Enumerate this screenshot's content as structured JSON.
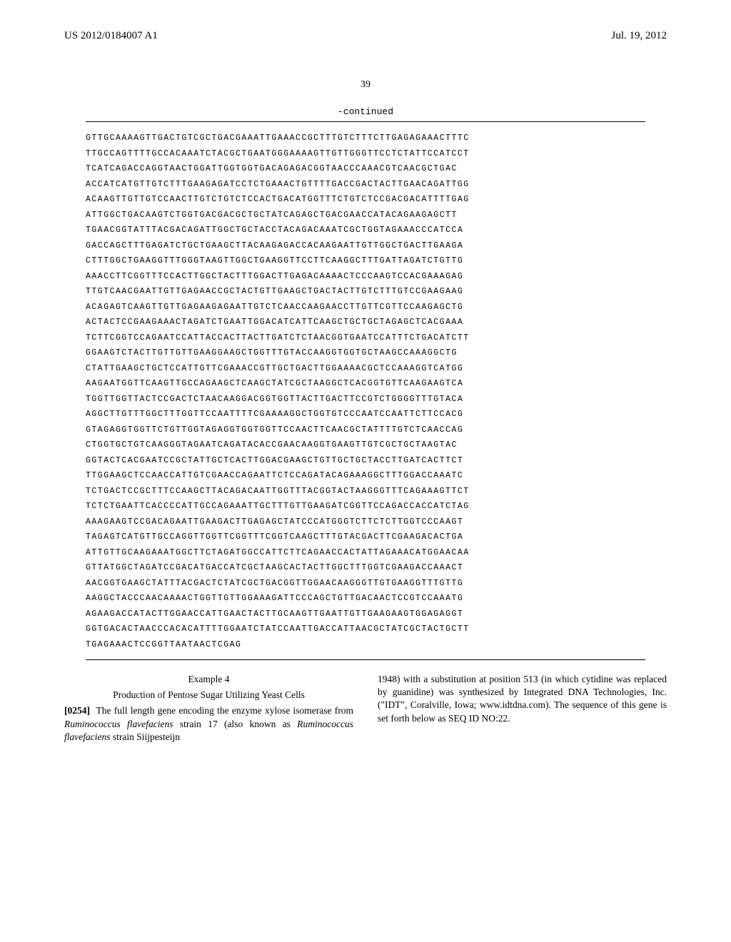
{
  "header": {
    "pub_number": "US 2012/0184007 A1",
    "pub_date": "Jul. 19, 2012"
  },
  "page_number": "39",
  "continued_label": "-continued",
  "sequence_lines": [
    "GTTGCAAAAGTTGACTGTCGCTGACGAAATTGAAACCGCTTTGTCTTTCTTGAGAGAAACTTTC",
    "TTGCCAGTTTTGCCACAAATCTACGCTGAATGGGAAAAGTTGTTGGGTTCCTCTATTCCATCCT",
    "TCATCAGACCAGGTAACTGGATTGGTGGTGACAGAGACGGTAACCCAAACGTCAACGCTGAC",
    "ACCATCATGTTGTCTTTGAAGAGATCCTCTGAAACTGTTTTGACCGACTACTTGAACAGATTGG",
    "ACAAGTTGTTGTCCAACTTGTCTGTCTCCACTGACATGGTTTCTGTCTCCGACGACATTTTGAG",
    "ATTGGCTGACAAGTCTGGTGACGACGCTGCTATCAGAGCTGACGAACCATACAGAAGAGCTT",
    "TGAACGGTATTTACGACAGATTGGCTGCTACCTACAGACAAATCGCTGGTAGAAACCCATCCA",
    "GACCAGCTTTGAGATCTGCTGAAGCTTACAAGAGACCACAAGAATTGTTGGCTGACTTGAAGA",
    "CTTTGGCTGAAGGTTTGGGTAAGTTGGCTGAAGGTTCCTTCAAGGCTTTGATTAGATCTGTTG",
    "AAACCTTCGGTTTCCACTTGGCTACTTTGGACTTGAGACAAAACTCCCAAGTCCACGAAAGAG",
    "TTGTCAACGAATTGTTGAGAACCGCTACTGTTGAAGCTGACTACTTGTCTTTGTCCGAAGAAG",
    "ACAGAGTCAAGTTGTTGAGAAGAGAATTGTCTCAACCAAGAACCTTGTTCGTTCCAAGAGCTG",
    "ACTACTCCGAAGAAACTAGATCTGAATTGGACATCATTCAAGCTGCTGCTAGAGCTCACGAAA",
    "TCTTCGGTCCAGAATCCATTACCACTTACTTGATCTCTAACGGTGAATCCATTTCTGACATCTT",
    "GGAAGTCTACTTGTTGTTGAAGGAAGCTGGTTTGTACCAAGGTGGTGCTAAGCCAAAGGCTG",
    "CTATTGAAGCTGCTCCATTGTTCGAAACCGTTGCTGACTTGGAAAACGCTCCAAAGGTCATGG",
    "AAGAATGGTTCAAGTTGCCAGAAGCTCAAGCTATCGCTAAGGCTCACGGTGTTCAAGAAGTCA",
    "TGGTTGGTTACTCCGACTCTAACAAGGACGGTGGTTACTTGACTTCCGTCTGGGGTTTGTACA",
    "AGGCTTGTTTGGCTTTGGTTCCAATTTTCGAAAAGGCTGGTGTCCCAATCCAATTCTTCCACG",
    "GTAGAGGTGGTTCTGTTGGTAGAGGTGGTGGTTCCAACTTCAACGCTATTTTGTCTCAACCAG",
    "CTGGTGCTGTCAAGGGTAGAATCAGATACACCGAACAAGGTGAAGTTGTCGCTGCTAAGTAC",
    "GGTACTCACGAATCCGCTATTGCTCACTTGGACGAAGCTGTTGCTGCTACCTTGATCACTTCT",
    "TTGGAAGCTCCAACCATTGTCGAACCAGAATTCTCCAGATACAGAAAGGCTTTGGACCAAATC",
    "TCTGACTCCGCTTTCCAAGCTTACAGACAATTGGTTTACGGTACTAAGGGTTTCAGAAAGTTCT",
    "TCTCTGAATTCACCCCATTGCCAGAAATTGCTTTGTTGAAGATCGGTTCCAGACCACCATCTAG",
    "AAAGAAGTCCGACAGAATTGAAGACTTGAGAGCTATCCCATGGGTCTTCTCTTGGTCCCAAGT",
    "TAGAGTCATGTTGCCAGGTTGGTTCGGTTTCGGTCAAGCTTTGTACGACTTCGAAGACACTGA",
    "ATTGTTGCAAGAAATGGCTTCTAGATGGCCATTCTTCAGAACCACTATTAGAAACATGGAACAA",
    "GTTATGGCTAGATCCGACATGACCATCGCTAAGCACTACTTGGCTTTGGTCGAAGACCAAACT",
    "AACGGTGAAGCTATTTACGACTCTATCGCTGACGGTTGGAACAAGGGTTGTGAAGGTTTGTTG",
    "AAGGCTACCCAACAAAACTGGTTGTTGGAAAGATTCCCAGCTGTTGACAACTCCGTCCAAATG",
    "AGAAGACCATACTTGGAACCATTGAACTACTTGCAAGTTGAATTGTTGAAGAAGTGGAGAGGT",
    "GGTGACACTAACCCACACATTTTGGAATCTATCCAATTGACCATTAACGCTATCGCTACTGCTT",
    "TGAGAAACTCCGGTTAATAACTCGAG"
  ],
  "example": {
    "heading": "Example 4",
    "title": "Production of Pentose Sugar Utilizing Yeast Cells",
    "para_num": "[0254]",
    "left_text": "The full length gene encoding the enzyme xylose isomerase from ",
    "left_italic1": "Ruminococcus flavefaciens",
    "left_text2": " strain 17 (also known as ",
    "left_italic2": "Ruminococcus flavefaciens",
    "left_text3": " strain Siijpesteijn",
    "right_text": "1948) with a substitution at position 513 (in which cytidine was replaced by guanidine) was synthesized by Integrated DNA Technologies, Inc. (\"IDT\", Coralville, Iowa; www.idtdna.com). The sequence of this gene is set forth below as SEQ ID NO:22."
  }
}
